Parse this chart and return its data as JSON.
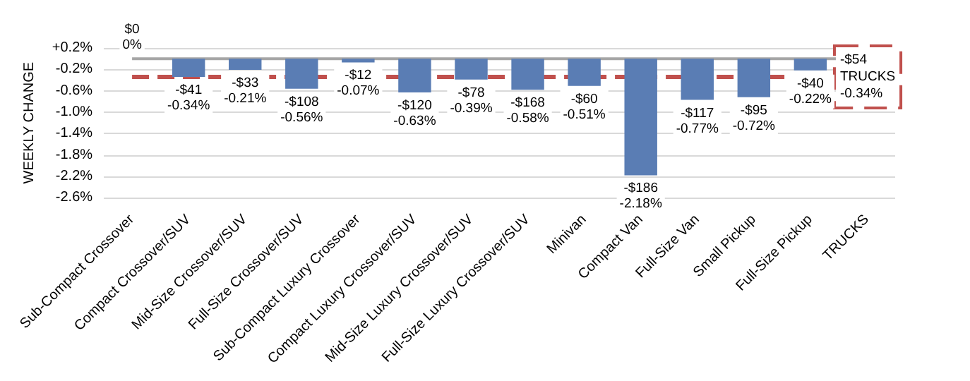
{
  "chart_data": {
    "type": "bar",
    "ylabel": "WEEKLY CHANGE",
    "categories": [
      "Sub-Compact Crossover",
      "Compact Crossover/SUV",
      "Mid-Size Crossover/SUV",
      "Full-Size Crossover/SUV",
      "Sub-Compact Luxury Crossover",
      "Compact Luxury Crossover/SUV",
      "Mid-Size Luxury Crossover/SUV",
      "Full-Size Luxury Crossover/SUV",
      "Minivan",
      "Compact Van",
      "Full-Size Van",
      "Small Pickup",
      "Full-Size Pickup",
      "TRUCKS"
    ],
    "values": [
      0,
      -0.34,
      -0.21,
      -0.56,
      -0.07,
      -0.63,
      -0.39,
      -0.58,
      -0.51,
      -2.18,
      -0.77,
      -0.72,
      -0.22,
      null
    ],
    "value_labels": [
      "$0\n0%",
      "-$41\n-0.34%",
      "-$33\n-0.21%",
      "-$108\n-0.56%",
      "-$12\n-0.07%",
      "-$120\n-0.63%",
      "-$78\n-0.39%",
      "-$168\n-0.58%",
      "-$60\n-0.51%",
      "-$186\n-2.18%",
      "-$117\n-0.77%",
      "-$95\n-0.72%",
      "-$40\n-0.22%",
      null
    ],
    "color": "#5a7db4",
    "ylim": [
      -2.6,
      0.2
    ],
    "yticks": [
      {
        "value": 0.2,
        "label": "+0.2%"
      },
      {
        "value": -0.2,
        "label": "-0.2%"
      },
      {
        "value": -0.6,
        "label": "-0.6%"
      },
      {
        "value": -1.0,
        "label": "-1.0%"
      },
      {
        "value": -1.4,
        "label": "-1.4%"
      },
      {
        "value": -1.8,
        "label": "-1.8%"
      },
      {
        "value": -2.2,
        "label": "-2.2%"
      },
      {
        "value": -2.6,
        "label": "-2.6%"
      }
    ],
    "ref_lines": [
      {
        "axis": "y",
        "value": -0.34,
        "label": "-$54\nTRUCKS\n-0.34%",
        "color": "#c0504d",
        "line_style": "dashed"
      }
    ],
    "grid": "y"
  }
}
